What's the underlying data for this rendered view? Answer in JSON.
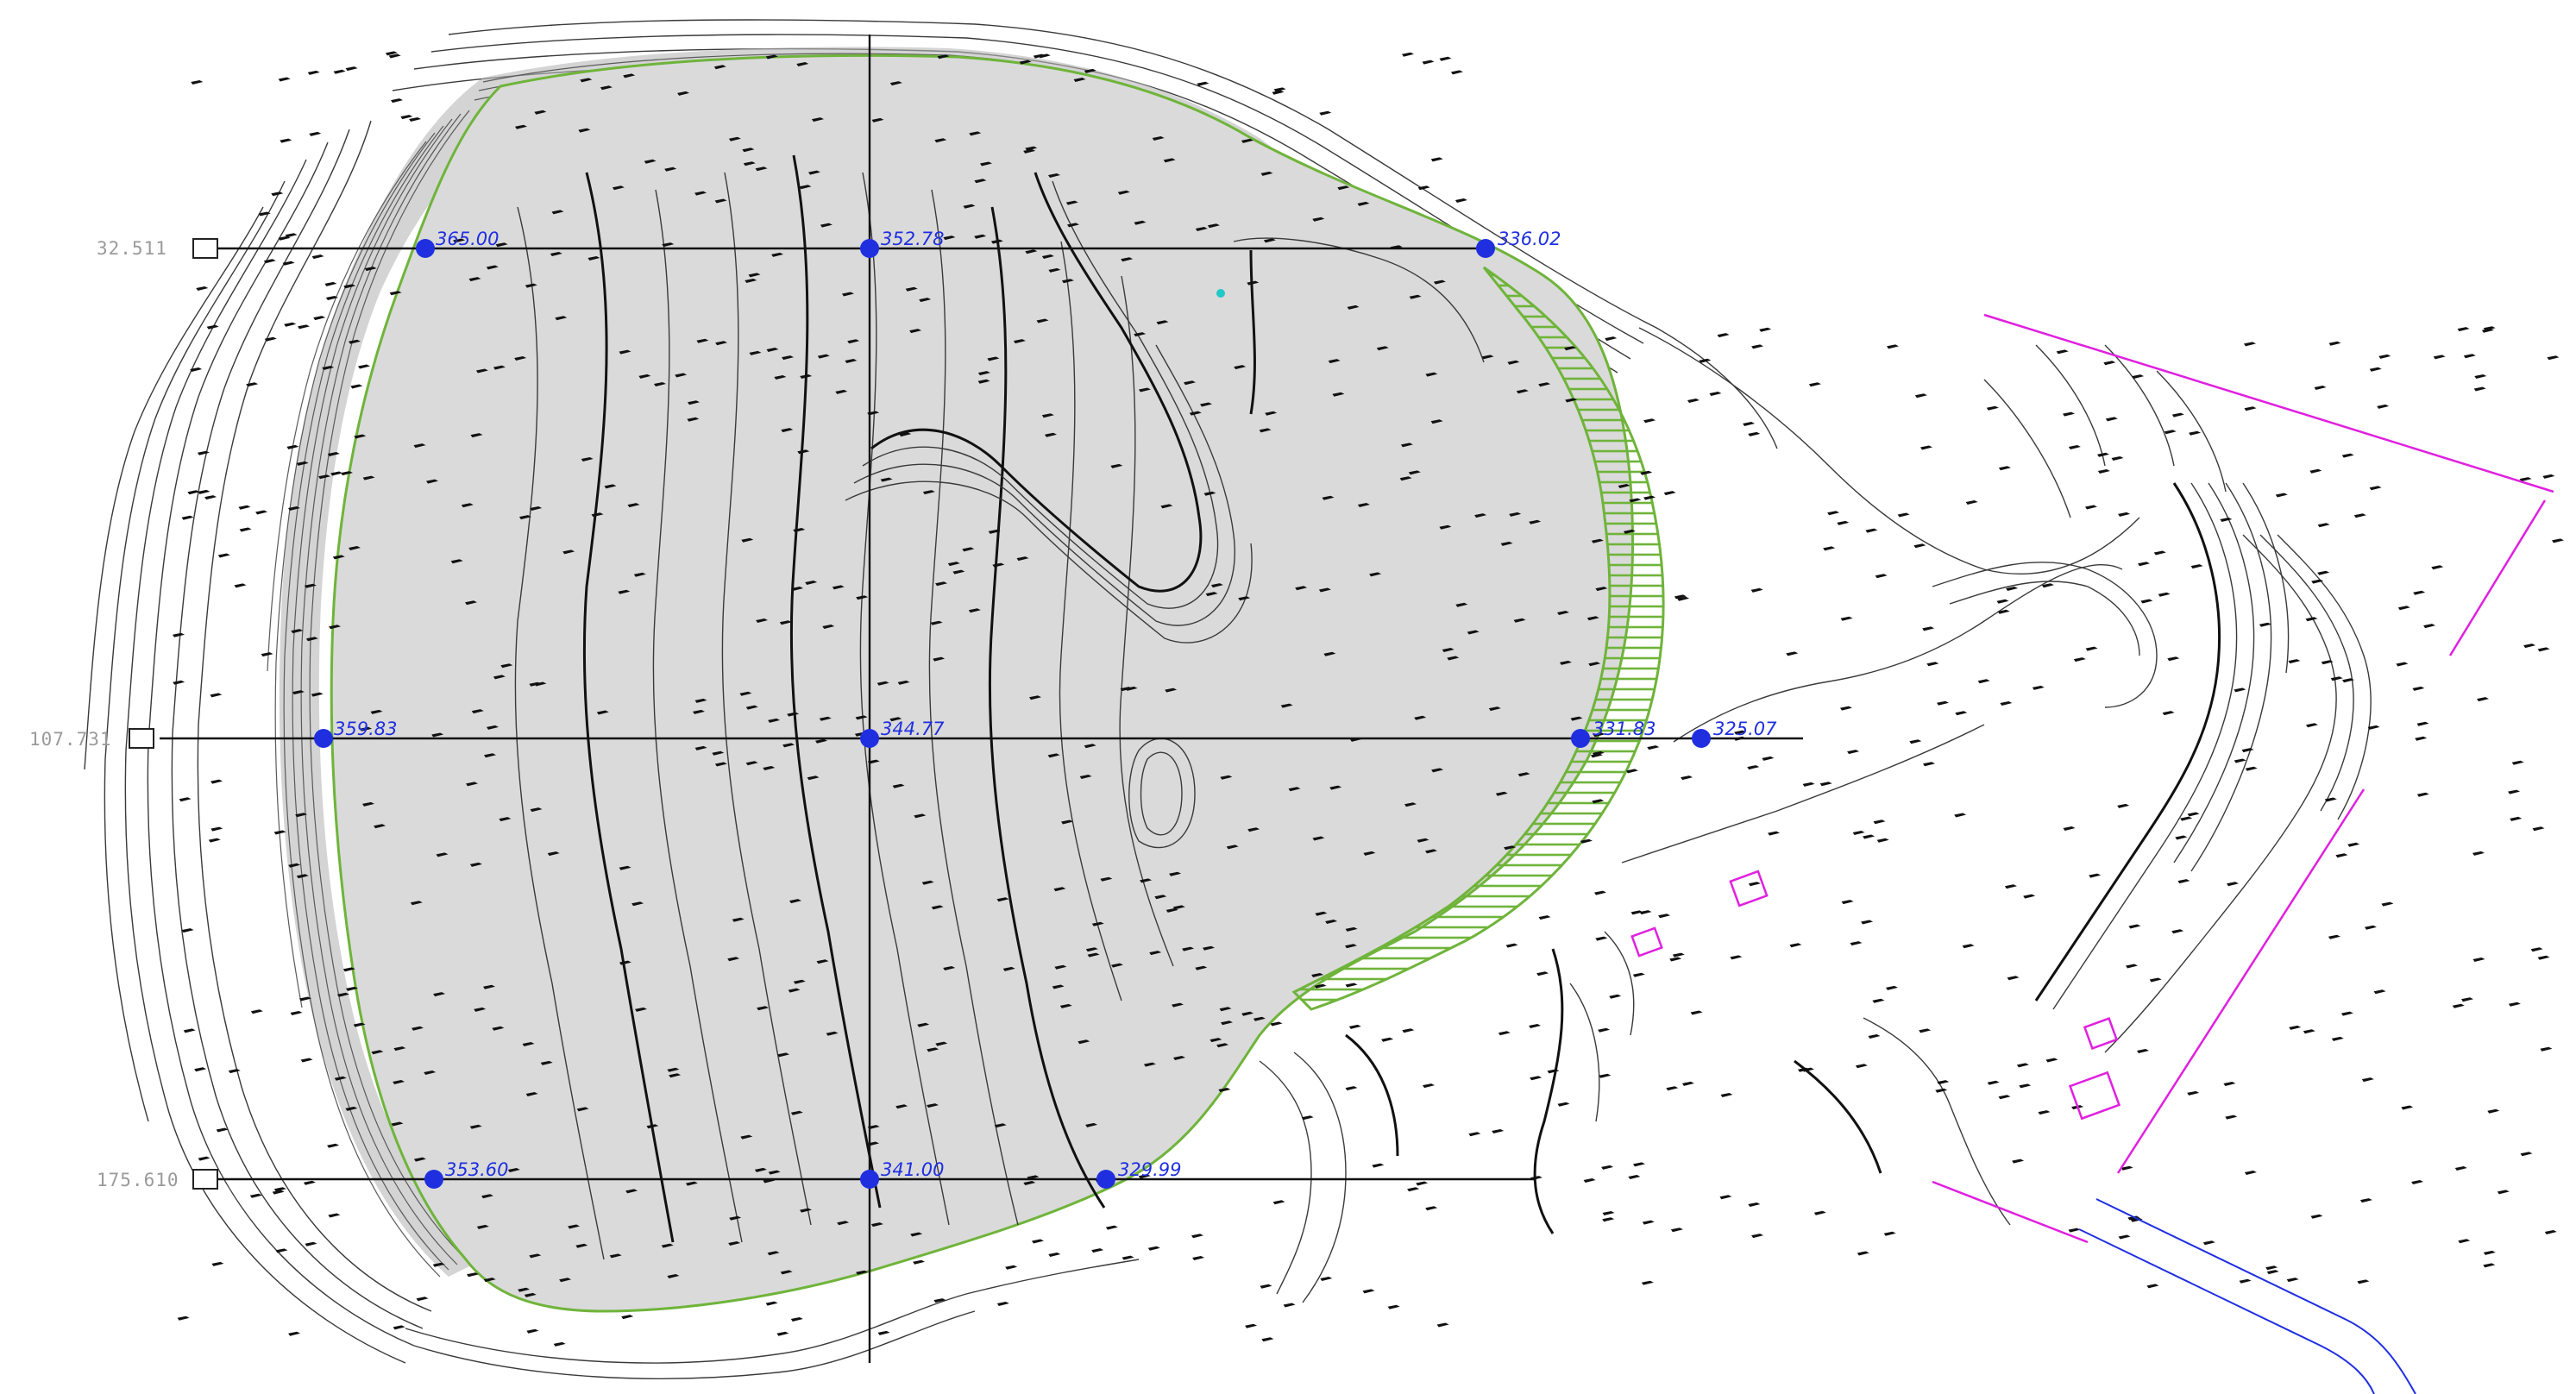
{
  "colors": {
    "background": "#ffffff",
    "platform_fill": "#dadada",
    "platform_outline": "#6fb43a",
    "slope_hatch": "#6fb43a",
    "contour": "#3a3a3a",
    "section_line": "#111111",
    "marker": "#1f2fe0",
    "elevation_text": "#1f2fe0",
    "property_line": "#e020e0",
    "road_line": "#1f2fe0",
    "section_text": "#9a9a9a"
  },
  "sections": [
    {
      "label": "32.511"
    },
    {
      "label": "107.731"
    },
    {
      "label": "175.610"
    }
  ],
  "elevations": {
    "r1": [
      "365.00",
      "352.78",
      "336.02"
    ],
    "r2": [
      "359.83",
      "344.77",
      "331.83",
      "325.07"
    ],
    "r3": [
      "353.60",
      "341.00",
      "329.99"
    ]
  },
  "icons": {
    "marker": "survey-point-icon",
    "section_box": "section-tag-icon",
    "spot_height": "spot-height-icon"
  }
}
